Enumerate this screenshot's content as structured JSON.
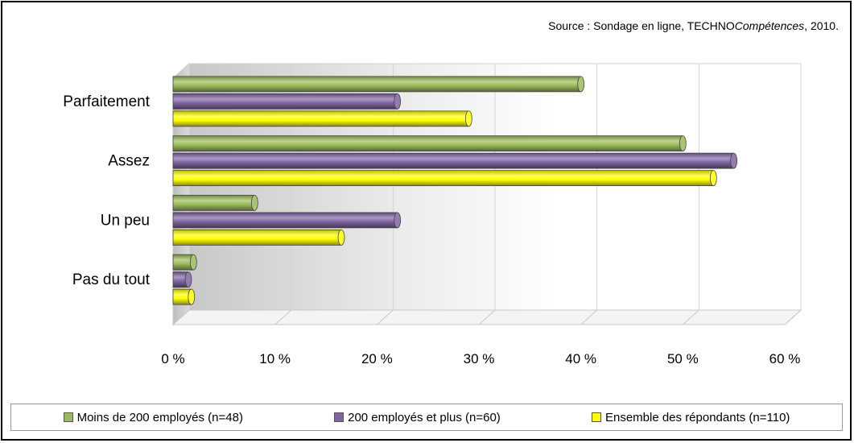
{
  "source": {
    "prefix": "Source : Sondage en ligne, TECHNO",
    "italic": "Compétences",
    "suffix": ", 2010."
  },
  "chart_data": {
    "type": "bar",
    "orientation": "horizontal",
    "style": "3d-cylinder",
    "categories": [
      "Parfaitement",
      "Assez",
      "Un peu",
      "Pas du tout"
    ],
    "series": [
      {
        "name": "Moins de 200 employés (n=48)",
        "color": "#9bbb59",
        "values": [
          40,
          50,
          8,
          2
        ]
      },
      {
        "name": "200 employés et plus (n=60)",
        "color": "#8064a2",
        "values": [
          22,
          55,
          22,
          1.5
        ]
      },
      {
        "name": "Ensemble des répondants (n=110)",
        "color": "#ffff00",
        "values": [
          29,
          53,
          16.5,
          1.8
        ]
      }
    ],
    "x_ticks": [
      "0 %",
      "10 %",
      "20 %",
      "30 %",
      "40 %",
      "50 %",
      "60 %"
    ],
    "xlim": [
      0,
      60
    ],
    "grid": true,
    "legend": "bottom"
  }
}
